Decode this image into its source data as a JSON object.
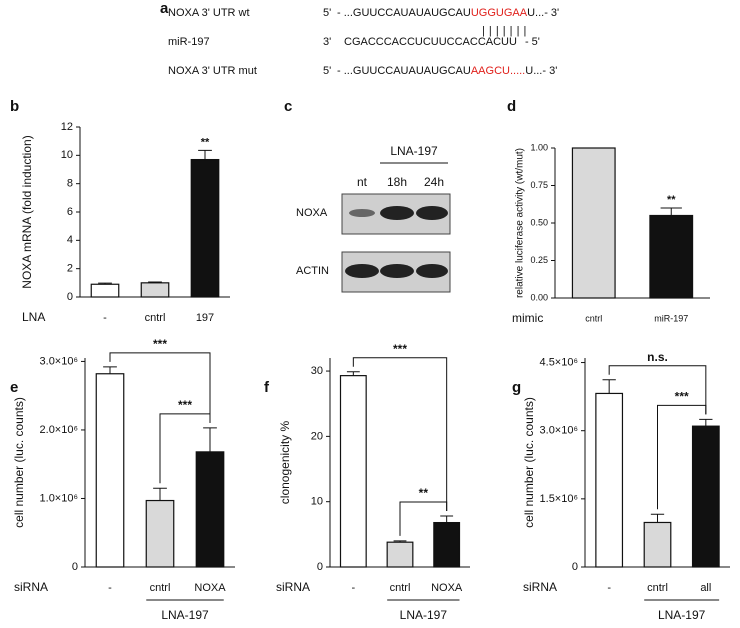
{
  "sequence": {
    "panel": "a",
    "rows": [
      {
        "name": "NOXA 3' UTR wt",
        "end": "5'",
        "seq": "- ...GUUCCAUAUAUGCAU",
        "highlight": "UGGUGAA",
        "tail": "U...- 3'"
      },
      {
        "name": "miR-197",
        "end": "3'",
        "seq": "CGACCCACCUCUUCCACCACUU",
        "tail": "- 5'"
      },
      {
        "name": "NOXA 3' UTR mut",
        "end": "5'",
        "seq": "- ...GUUCCAUAUAUGCAU",
        "highlight": "AAGCU.....",
        "tail": "U...- 3'"
      }
    ],
    "pairing": "| | | | | | |"
  },
  "blot": {
    "panel": "c",
    "treatment": "LNA-197",
    "lanes": [
      "nt",
      "18h",
      "24h"
    ],
    "rows": [
      "NOXA",
      "ACTIN"
    ]
  },
  "chart_data": [
    {
      "type": "bar",
      "panel": "b",
      "ylabel": "NOXA mRNA (fold induction)",
      "x_prefix": "LNA",
      "categories": [
        "-",
        "cntrl",
        "197"
      ],
      "values": [
        0.9,
        1.0,
        9.7
      ],
      "errors": [
        0.08,
        0.06,
        0.65
      ],
      "colors": [
        "#ffffff",
        "#d9d9d9",
        "#111111"
      ],
      "ylim": [
        0,
        12
      ],
      "yticks": [
        0,
        2,
        4,
        6,
        8,
        10,
        12
      ],
      "annotations": [
        {
          "text": "**",
          "between": [
            "197"
          ]
        }
      ]
    },
    {
      "type": "bar",
      "panel": "d",
      "ylabel": "relative luciferase activity (wt/mut)",
      "x_prefix": "mimic",
      "categories": [
        "cntrl",
        "miR-197"
      ],
      "values": [
        1.0,
        0.55
      ],
      "errors": [
        0,
        0.05
      ],
      "colors": [
        "#d9d9d9",
        "#111111"
      ],
      "ylim": [
        0,
        1
      ],
      "yticks": [
        {
          "value": 0,
          "label": "0.00"
        },
        {
          "value": 0.25,
          "label": "0.25"
        },
        {
          "value": 0.5,
          "label": "0.50"
        },
        {
          "value": 0.75,
          "label": "0.75"
        },
        {
          "value": 1,
          "label": "1.00"
        }
      ],
      "annotations": [
        {
          "text": "**",
          "between": [
            "miR-197"
          ]
        }
      ]
    },
    {
      "type": "bar",
      "panel": "e",
      "ylabel": "cell number (luc. counts)",
      "x_prefix": "siRNA",
      "categories": [
        "-",
        "cntrl",
        "NOXA"
      ],
      "values": [
        2820000,
        970000,
        1680000
      ],
      "errors": [
        100000,
        180000,
        350000
      ],
      "colors": [
        "#ffffff",
        "#d9d9d9",
        "#111111"
      ],
      "ylim": [
        0,
        3050000
      ],
      "yticks": [
        0,
        {
          "value": 1000000,
          "label": "1.0×10⁶"
        },
        {
          "value": 2000000,
          "label": "2.0×10⁶"
        },
        {
          "value": 3000000,
          "label": "3.0×10⁶"
        }
      ],
      "group": {
        "label": "LNA-197",
        "categories": [
          "cntrl",
          "NOXA"
        ]
      },
      "annotations": [
        {
          "text": "***",
          "between": [
            "-",
            "NOXA"
          ]
        },
        {
          "text": "***",
          "between": [
            "cntrl",
            "NOXA"
          ]
        }
      ]
    },
    {
      "type": "bar",
      "panel": "f",
      "ylabel": "clonogenicity %",
      "x_prefix": "siRNA",
      "categories": [
        "-",
        "cntrl",
        "NOXA"
      ],
      "values": [
        29.3,
        3.8,
        6.8
      ],
      "errors": [
        0.6,
        0.2,
        1.0
      ],
      "colors": [
        "#ffffff",
        "#d9d9d9",
        "#111111"
      ],
      "ylim": [
        0,
        32
      ],
      "yticks": [
        0,
        10,
        20,
        30
      ],
      "group": {
        "label": "LNA-197",
        "categories": [
          "cntrl",
          "NOXA"
        ]
      },
      "annotations": [
        {
          "text": "***",
          "between": [
            "-",
            "NOXA"
          ]
        },
        {
          "text": "**",
          "between": [
            "cntrl",
            "NOXA"
          ]
        }
      ]
    },
    {
      "type": "bar",
      "panel": "g",
      "ylabel": "cell number (luc. counts)",
      "x_prefix": "siRNA",
      "categories": [
        "-",
        "cntrl",
        "all"
      ],
      "values": [
        3820000,
        980000,
        3100000
      ],
      "errors": [
        300000,
        180000,
        150000
      ],
      "colors": [
        "#ffffff",
        "#d9d9d9",
        "#111111"
      ],
      "ylim": [
        0,
        4600000
      ],
      "yticks": [
        0,
        {
          "value": 1500000,
          "label": "1.5×10⁶"
        },
        {
          "value": 3000000,
          "label": "3.0×10⁶"
        },
        {
          "value": 4500000,
          "label": "4.5×10⁶"
        }
      ],
      "group": {
        "label": "LNA-197",
        "categories": [
          "cntrl",
          "all"
        ]
      },
      "annotations": [
        {
          "text": "n.s.",
          "between": [
            "-",
            "all"
          ]
        },
        {
          "text": "***",
          "between": [
            "cntrl",
            "all"
          ]
        }
      ]
    }
  ]
}
